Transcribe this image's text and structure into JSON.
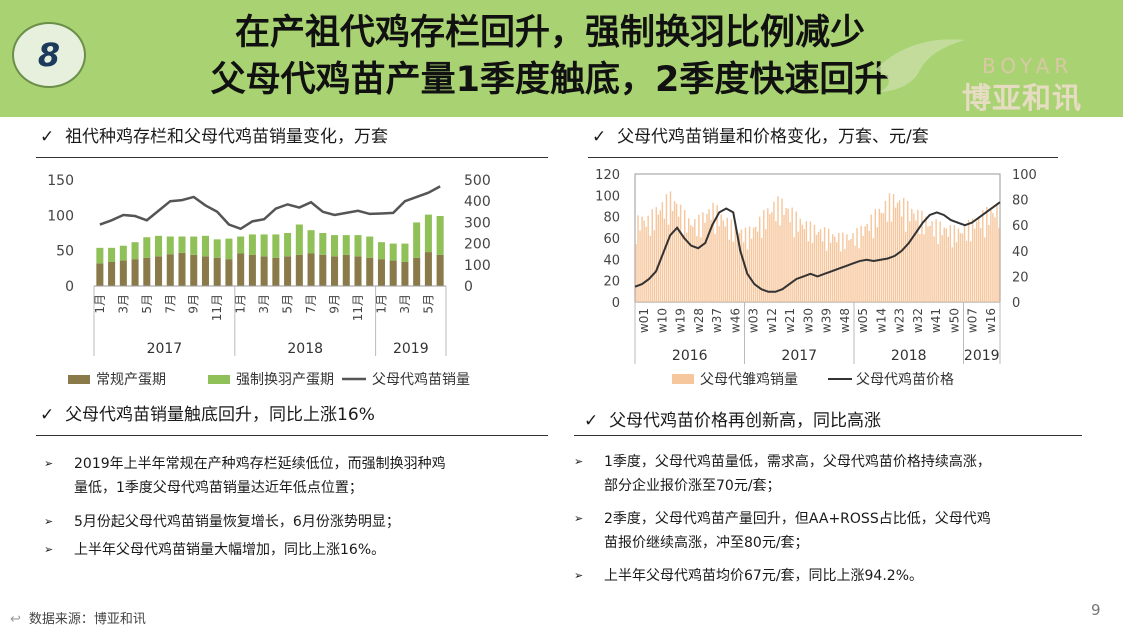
{
  "badge": "8",
  "title_lines": [
    "在产祖代鸡存栏回升，强制换羽比例减少",
    "父母代鸡苗产量1季度触底，2季度快速回升"
  ],
  "logo": {
    "en": "BOYAR",
    "cn": "博亚和讯"
  },
  "sections": {
    "left_chart_title": "祖代种鸡存栏和父母代鸡苗销量变化，万套",
    "right_chart_title": "父母代鸡苗销量和价格变化，万套、元/套",
    "left_text_title": "父母代鸡苗销量触底回升，同比上涨16%",
    "right_text_title": "父母代鸡苗价格再创新高，同比高涨"
  },
  "left_bullets": [
    [
      "2019年上半年常规在产种鸡存栏延续低位，而强制换羽种鸡",
      "量低，1季度父母代鸡苗销量达近年低点位置；"
    ],
    [
      "5月份起父母代鸡苗销量恢复增长，6月份涨势明显；"
    ],
    [
      "上半年父母代鸡苗销量大幅增加，同比上涨16%。"
    ]
  ],
  "right_bullets": [
    [
      "1季度，父母代鸡苗量低，需求高，父母代鸡苗价格持续高涨，",
      "部分企业报价涨至70元/套；"
    ],
    [
      "2季度，父母代鸡苗产量回升，但AA+ROSS占比低，父母代鸡",
      "苗报价继续高涨，冲至80元/套；"
    ],
    [
      "上半年父母代鸡苗均价67元/套，同比上涨94.2%。"
    ]
  ],
  "source": "数据来源：博亚和讯",
  "page_number": "9",
  "colors": {
    "banner": "#a9d372",
    "regular": "#8a7a4a",
    "molted": "#8fc158",
    "sales_line": "#555555",
    "pd_bar": "#f6c69c",
    "price_line": "#333333"
  },
  "chart_data": [
    {
      "type": "bar",
      "stacked": true,
      "categories": [
        "1月",
        "2月",
        "3月",
        "4月",
        "5月",
        "6月",
        "7月",
        "8月",
        "9月",
        "10月",
        "11月",
        "12月",
        "1月",
        "2月",
        "3月",
        "4月",
        "5月",
        "6月",
        "7月",
        "8月",
        "9月",
        "10月",
        "11月",
        "12月",
        "1月",
        "2月",
        "3月",
        "4月",
        "5月",
        "6月"
      ],
      "x_tick_labels": [
        "1月",
        "",
        "3月",
        "",
        "5月",
        "",
        "7月",
        "",
        "9月",
        "",
        "11月",
        "",
        "1月",
        "",
        "3月",
        "",
        "5月",
        "",
        "7月",
        "",
        "9月",
        "",
        "11月",
        "",
        "1月",
        "",
        "3月",
        "",
        "5月",
        ""
      ],
      "year_groups": [
        {
          "label": "2017",
          "count": 12
        },
        {
          "label": "2018",
          "count": 12
        },
        {
          "label": "2019",
          "count": 6
        }
      ],
      "series": [
        {
          "name": "常规产蛋期",
          "axis": "left",
          "values": [
            32,
            34,
            36,
            38,
            40,
            42,
            45,
            47,
            44,
            42,
            40,
            38,
            46,
            44,
            42,
            40,
            42,
            44,
            46,
            44,
            42,
            44,
            42,
            40,
            38,
            36,
            34,
            40,
            48,
            44
          ]
        },
        {
          "name": "强制换羽产蛋期",
          "axis": "left",
          "values": [
            22,
            20,
            21,
            24,
            29,
            29,
            25,
            23,
            26,
            29,
            26,
            29,
            24,
            29,
            31,
            33,
            33,
            43,
            33,
            31,
            30,
            28,
            30,
            30,
            24,
            24,
            26,
            50,
            53,
            55
          ]
        },
        {
          "name": "父母代鸡苗销量",
          "axis": "right",
          "type": "line",
          "values": [
            290,
            310,
            335,
            330,
            310,
            355,
            400,
            405,
            420,
            380,
            350,
            290,
            270,
            305,
            315,
            365,
            385,
            370,
            395,
            350,
            335,
            345,
            355,
            340,
            342,
            345,
            400,
            420,
            440,
            470
          ]
        }
      ],
      "ylim_left": [
        0,
        150
      ],
      "yticks_left": [
        0,
        50,
        100,
        150
      ],
      "ylim_right": [
        0,
        500
      ],
      "yticks_right": [
        0,
        100,
        200,
        300,
        400,
        500
      ],
      "legend_position": "bottom"
    },
    {
      "type": "bar",
      "x_tick_labels": [
        "w01",
        "w10",
        "w19",
        "w28",
        "w37",
        "w46",
        "w03",
        "w12",
        "w21",
        "w30",
        "w39",
        "w48",
        "w05",
        "w14",
        "w23",
        "w32",
        "w41",
        "w50",
        "w07",
        "w16"
      ],
      "year_groups": [
        {
          "label": "2016",
          "count": 6
        },
        {
          "label": "2017",
          "count": 6
        },
        {
          "label": "2018",
          "count": 6
        },
        {
          "label": "2019",
          "count": 2
        }
      ],
      "series": [
        {
          "name": "父母代雏鸡销量",
          "axis": "left",
          "envelope": [
            80,
            85,
            82,
            88,
            95,
            100,
            105,
            100,
            90,
            82,
            80,
            82,
            88,
            95,
            92,
            85,
            80,
            75,
            72,
            70,
            72,
            78,
            85,
            92,
            98,
            100,
            96,
            90,
            84,
            80,
            76,
            74,
            72,
            70,
            68,
            66,
            65,
            66,
            68,
            72,
            78,
            84,
            90,
            96,
            102,
            104,
            100,
            96,
            92,
            88,
            84,
            80,
            78,
            76,
            74,
            72,
            72,
            74,
            78,
            82,
            86,
            90,
            92,
            94
          ]
        },
        {
          "name": "父母代鸡苗价格",
          "axis": "right",
          "type": "line",
          "values": [
            12,
            14,
            18,
            24,
            38,
            52,
            58,
            50,
            44,
            42,
            46,
            60,
            70,
            73,
            70,
            40,
            22,
            14,
            10,
            8,
            8,
            10,
            14,
            18,
            20,
            22,
            20,
            22,
            24,
            26,
            28,
            30,
            32,
            33,
            32,
            33,
            34,
            36,
            40,
            46,
            54,
            62,
            68,
            70,
            68,
            64,
            62,
            60,
            62,
            66,
            70,
            74,
            78
          ]
        }
      ],
      "ylim_left": [
        0,
        120
      ],
      "yticks_left": [
        0,
        20,
        40,
        60,
        80,
        100,
        120
      ],
      "ylim_right": [
        0,
        100
      ],
      "yticks_right": [
        0,
        20,
        40,
        60,
        80,
        100
      ],
      "legend_position": "bottom"
    }
  ]
}
